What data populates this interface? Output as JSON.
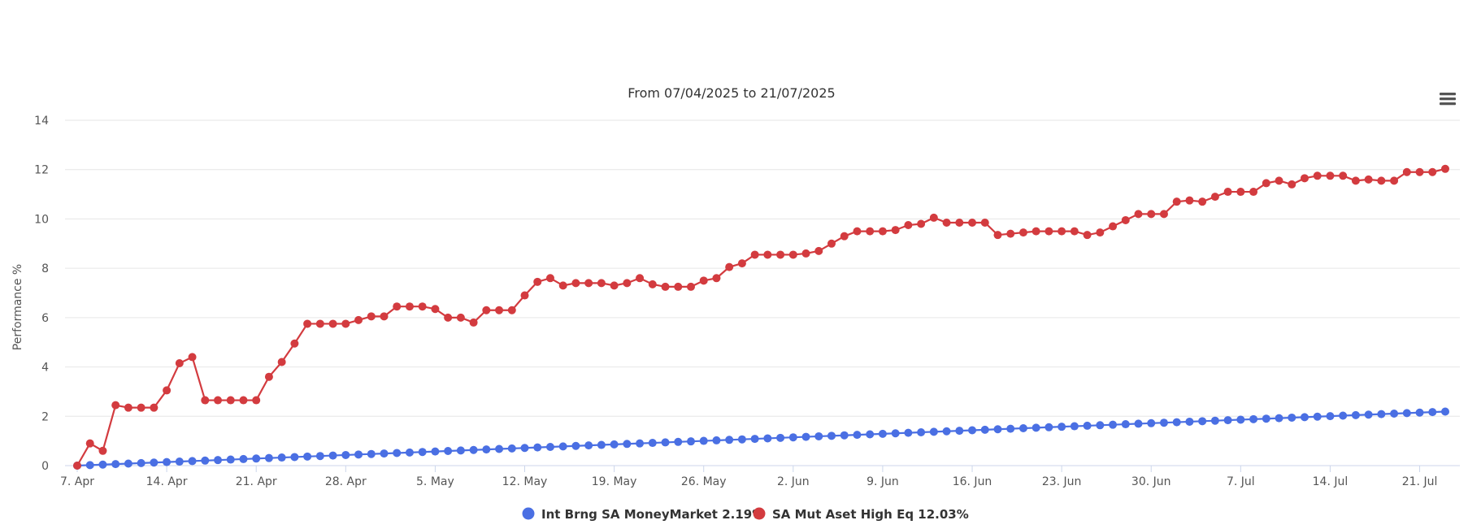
{
  "chart_data": {
    "type": "line",
    "title": "",
    "subtitle": "From 07/04/2025 to 21/07/2025",
    "xlabel": "",
    "ylabel": "Performance %",
    "ylim": [
      0,
      14
    ],
    "y_ticks": [
      "0",
      "2",
      "4",
      "6",
      "8",
      "10",
      "12",
      "14"
    ],
    "x_tick_labels": [
      "7. Apr",
      "14. Apr",
      "21. Apr",
      "28. Apr",
      "5. May",
      "12. May",
      "19. May",
      "26. May",
      "2. Jun",
      "9. Jun",
      "16. Jun",
      "23. Jun",
      "30. Jun",
      "7. Jul",
      "14. Jul",
      "21. Jul"
    ],
    "grid": true,
    "legend_position": "bottom",
    "series": [
      {
        "name": "Int Brng SA MoneyMarket 2.19%",
        "color": "#4a6fe3",
        "start": 0.0,
        "end": 2.19
      },
      {
        "name": "SA Mut Aset High Eq 12.03%",
        "color": "#d33b3f",
        "values": [
          0.0,
          0.9,
          0.6,
          2.45,
          2.35,
          2.35,
          2.35,
          3.05,
          4.15,
          4.4,
          2.65,
          2.65,
          2.65,
          2.65,
          2.65,
          3.6,
          4.2,
          4.95,
          5.75,
          5.75,
          5.75,
          5.75,
          5.9,
          6.05,
          6.05,
          6.45,
          6.45,
          6.45,
          6.35,
          6.0,
          6.0,
          5.8,
          6.3,
          6.3,
          6.3,
          6.9,
          7.45,
          7.6,
          7.3,
          7.4,
          7.4,
          7.4,
          7.3,
          7.4,
          7.6,
          7.35,
          7.25,
          7.25,
          7.25,
          7.5,
          7.6,
          8.05,
          8.2,
          8.55,
          8.55,
          8.55,
          8.55,
          8.6,
          8.7,
          9.0,
          9.3,
          9.5,
          9.5,
          9.5,
          9.55,
          9.75,
          9.8,
          10.05,
          9.85,
          9.85,
          9.85,
          9.85,
          9.35,
          9.4,
          9.45,
          9.5,
          9.5,
          9.5,
          9.5,
          9.35,
          9.45,
          9.7,
          9.95,
          10.2,
          10.2,
          10.2,
          10.7,
          10.75,
          10.7,
          10.9,
          11.1,
          11.1,
          11.1,
          11.45,
          11.55,
          11.4,
          11.65,
          11.75,
          11.75,
          11.75,
          11.55,
          11.6,
          11.55,
          11.55,
          11.9,
          11.9,
          11.9,
          12.03
        ]
      }
    ]
  }
}
